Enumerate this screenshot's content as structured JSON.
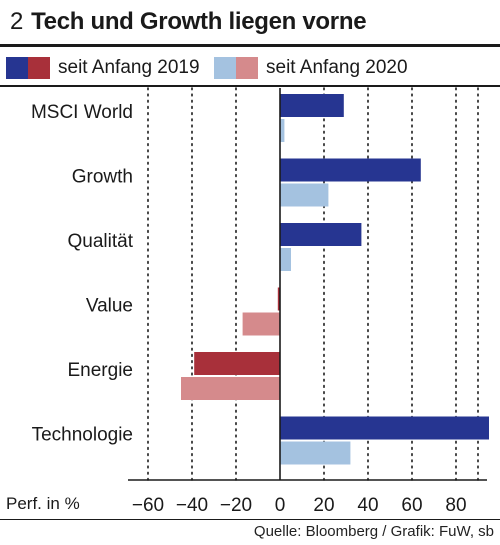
{
  "chart_data": {
    "type": "bar",
    "orientation": "horizontal",
    "title_number": "2",
    "title": "Tech und Growth liegen vorne",
    "categories": [
      "MSCI World",
      "Growth",
      "Qualität",
      "Value",
      "Energie",
      "Technologie"
    ],
    "series": [
      {
        "name": "seit Anfang 2019",
        "positive_color": "#263591",
        "negative_color": "#a8303a",
        "values": [
          29,
          64,
          37,
          -1,
          -39,
          95
        ]
      },
      {
        "name": "seit Anfang 2020",
        "positive_color": "#a4c2e0",
        "negative_color": "#d58a8c",
        "values": [
          2,
          22,
          5,
          -17,
          -45,
          32
        ]
      }
    ],
    "xlabel": "Perf. in %",
    "xlim": [
      -65,
      96
    ],
    "xticks": [
      -60,
      -40,
      -20,
      0,
      20,
      40,
      60,
      80
    ],
    "xtick_labels": [
      "−60",
      "−40",
      "−20",
      "0",
      "20",
      "40",
      "60",
      "80"
    ],
    "grid": "vertical dotted lines"
  },
  "source": "Quelle: Bloomberg / Grafik: FuW, sb"
}
